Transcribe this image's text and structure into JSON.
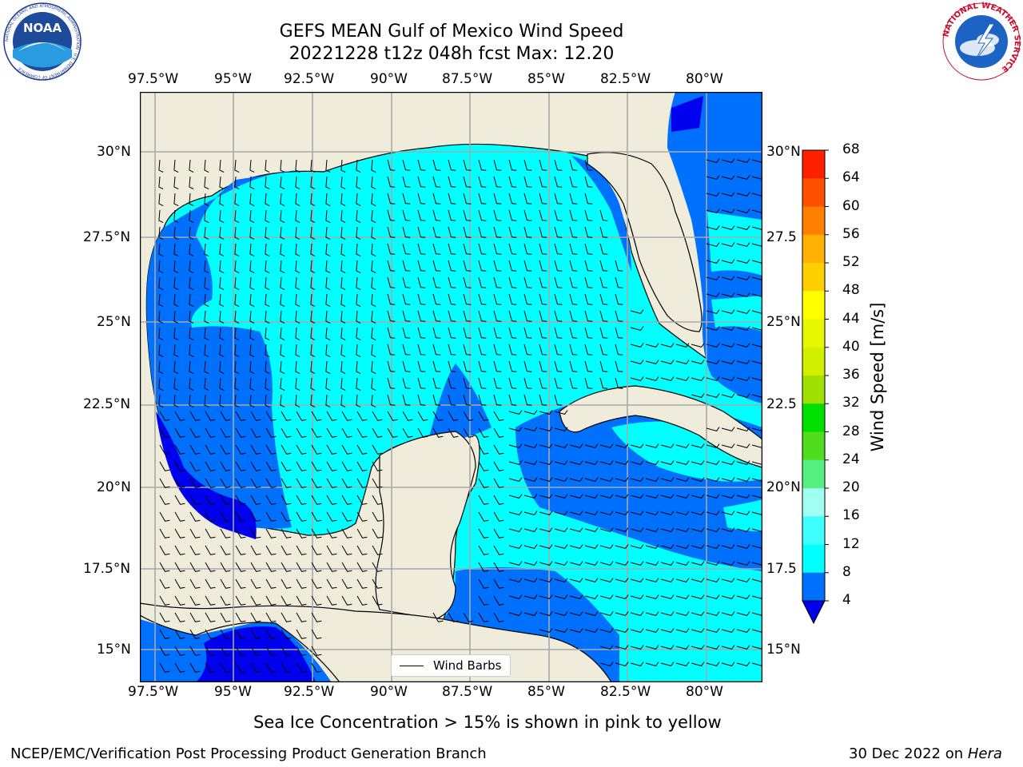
{
  "title": {
    "line1": "GEFS MEAN Gulf of Mexico Wind Speed",
    "line2": "20221228 t12z 048h fcst   Max: 12.20"
  },
  "logos": {
    "noaa_text": "NOAA",
    "noaa_ring": "NATIONAL OCEANIC AND ATMOSPHERIC ADMINISTRATION · U.S. DEPARTMENT OF COMMERCE",
    "nws_ring": "NATIONAL WEATHER SERVICE"
  },
  "map": {
    "lon_labels": [
      "97.5°W",
      "95°W",
      "92.5°W",
      "90°W",
      "87.5°W",
      "85°W",
      "82.5°W",
      "80°W"
    ],
    "lat_labels": [
      "30°N",
      "27.5°N",
      "25°N",
      "22.5°N",
      "20°N",
      "17.5°N",
      "15°N"
    ],
    "right_lat_labels": [
      "30°N",
      "27.5",
      "25°N",
      "22.5",
      "20°N",
      "17.5",
      "15°N"
    ],
    "land_color": "#efecdc",
    "ocean_default_color": "#00ffff",
    "legend_label": "Wind Barbs",
    "field_max": 12.2
  },
  "colorbar": {
    "title": "Wind Speed [m/s]",
    "ticks": [
      "4",
      "8",
      "12",
      "16",
      "20",
      "24",
      "28",
      "32",
      "36",
      "40",
      "44",
      "48",
      "52",
      "56",
      "60",
      "64",
      "68"
    ],
    "colors": [
      "#0070ff",
      "#00ffff",
      "#40ffff",
      "#9ffff0",
      "#55f080",
      "#50dd20",
      "#00e000",
      "#a0e000",
      "#d0f000",
      "#e8f800",
      "#ffff00",
      "#ffd000",
      "#ffb000",
      "#ff8000",
      "#ff5000",
      "#ff2000",
      "#ff0000"
    ],
    "extend_min_color": "#0000ee"
  },
  "footer": {
    "note": "Sea Ice Concentration > 15% is shown in pink to yellow",
    "branch": "NCEP/EMC/Verification Post Processing Product Generation Branch",
    "date": "30 Dec 2022 on",
    "machine": "Hera"
  }
}
